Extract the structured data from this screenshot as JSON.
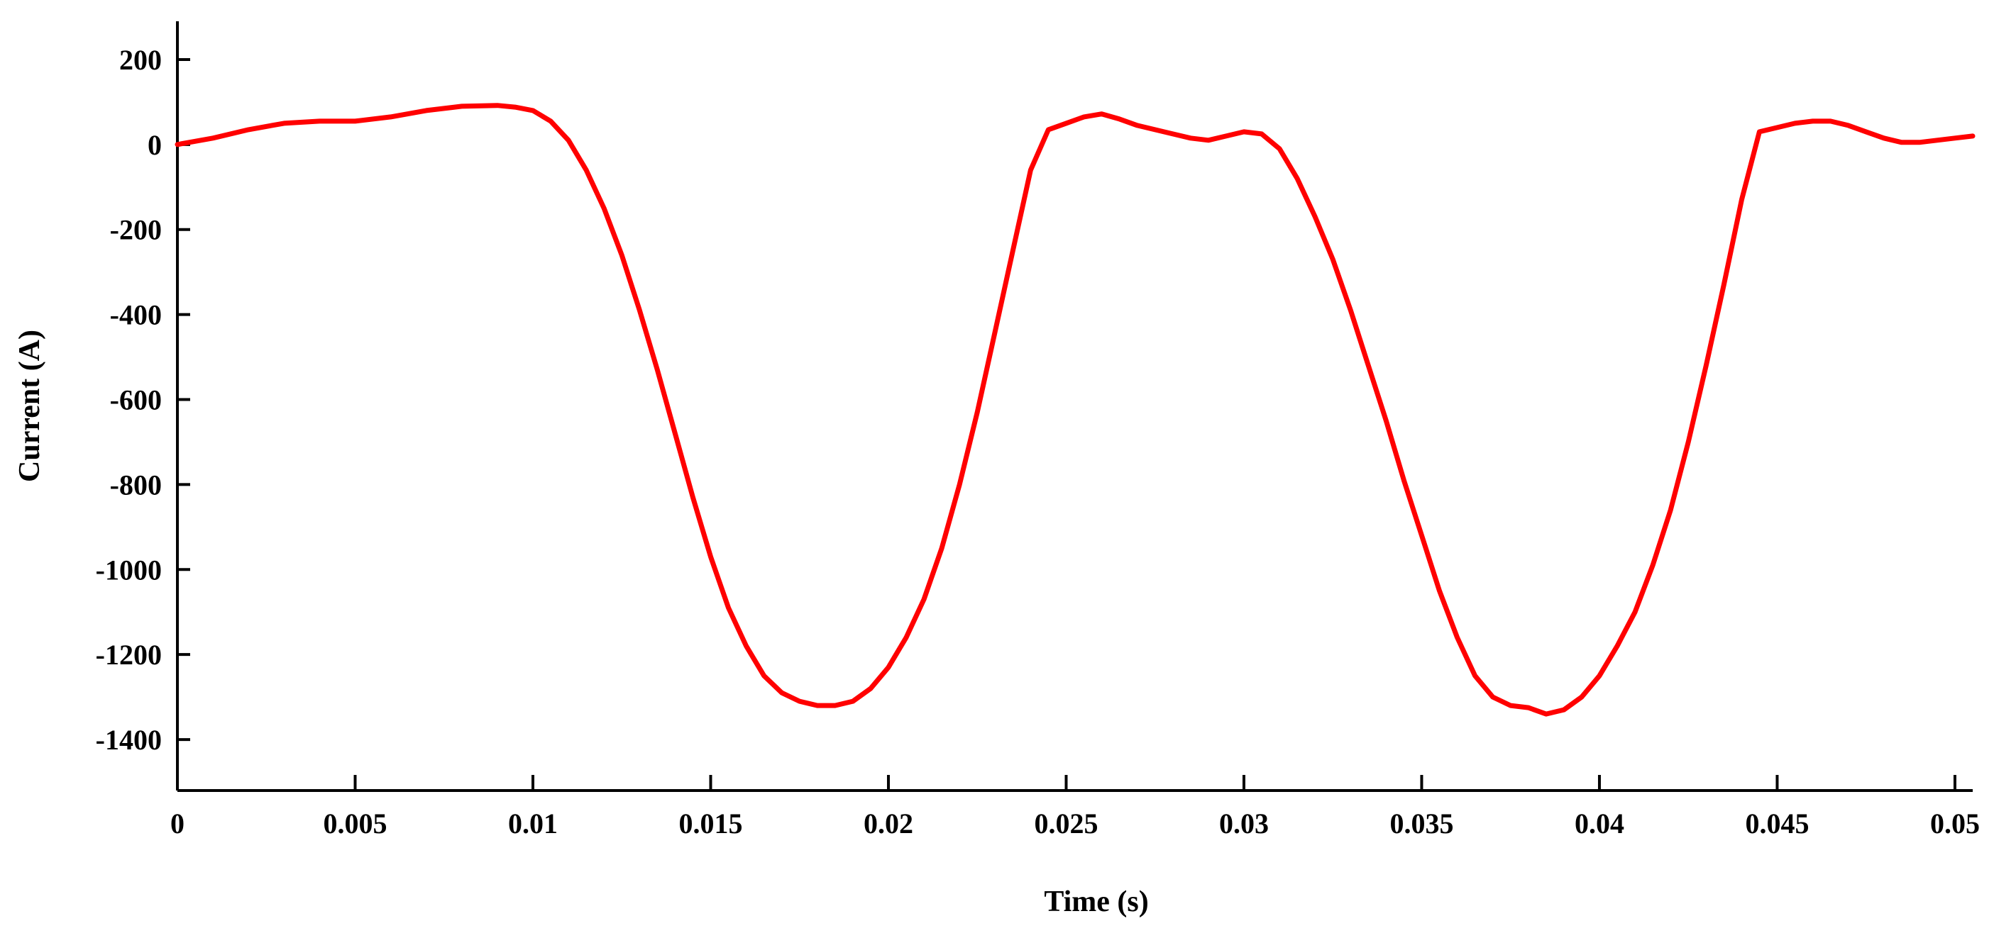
{
  "chart_data": {
    "type": "line",
    "title": "",
    "xlabel": "Time (s)",
    "ylabel": "Current (A)",
    "xlim": [
      0,
      0.0505
    ],
    "ylim": [
      -1520,
      290
    ],
    "x_ticks": [
      0,
      0.005,
      0.01,
      0.015,
      0.02,
      0.025,
      0.03,
      0.035,
      0.04,
      0.045,
      0.05
    ],
    "x_tick_labels": [
      "0",
      "0.005",
      "0.01",
      "0.015",
      "0.02",
      "0.025",
      "0.03",
      "0.035",
      "0.04",
      "0.045",
      "0.05"
    ],
    "y_ticks": [
      200,
      0,
      -200,
      -400,
      -600,
      -800,
      -1000,
      -1200,
      -1400
    ],
    "y_tick_labels": [
      "200",
      "0",
      "-200",
      "-400",
      "-600",
      "-800",
      "-1000",
      "-1200",
      "-1400"
    ],
    "grid": false,
    "legend": "none",
    "colors": {
      "series": "#ff0000",
      "axis": "#000000"
    },
    "series": [
      {
        "x": [
          0,
          0.001,
          0.002,
          0.003,
          0.004,
          0.005,
          0.006,
          0.007,
          0.008,
          0.009,
          0.0095,
          0.01,
          0.0105,
          0.011,
          0.0115,
          0.012,
          0.0125,
          0.013,
          0.0135,
          0.014,
          0.0145,
          0.015,
          0.0155,
          0.016,
          0.0165,
          0.017,
          0.0175,
          0.018,
          0.0185,
          0.019,
          0.0195,
          0.02,
          0.0205,
          0.021,
          0.0215,
          0.022,
          0.0225,
          0.023,
          0.0235,
          0.024,
          0.0245,
          0.025,
          0.0255,
          0.026,
          0.0265,
          0.027,
          0.0275,
          0.028,
          0.0285,
          0.029,
          0.0295,
          0.03,
          0.0305,
          0.031,
          0.0315,
          0.032,
          0.0325,
          0.033,
          0.0335,
          0.034,
          0.0345,
          0.035,
          0.0355,
          0.036,
          0.0365,
          0.037,
          0.0375,
          0.038,
          0.0385,
          0.039,
          0.0395,
          0.04,
          0.0405,
          0.041,
          0.0415,
          0.042,
          0.0425,
          0.043,
          0.0435,
          0.044,
          0.0445,
          0.045,
          0.0455,
          0.046,
          0.0465,
          0.047,
          0.0475,
          0.048,
          0.0485,
          0.049,
          0.0495,
          0.05,
          0.0505
        ],
        "y": [
          0,
          15,
          35,
          50,
          55,
          55,
          65,
          80,
          90,
          92,
          88,
          80,
          55,
          10,
          -60,
          -150,
          -260,
          -390,
          -530,
          -680,
          -830,
          -970,
          -1090,
          -1180,
          -1250,
          -1290,
          -1310,
          -1320,
          -1320,
          -1310,
          -1280,
          -1230,
          -1160,
          -1070,
          -950,
          -800,
          -630,
          -440,
          -250,
          -60,
          35,
          50,
          65,
          72,
          60,
          45,
          35,
          25,
          15,
          10,
          20,
          30,
          25,
          -10,
          -80,
          -170,
          -270,
          -390,
          -520,
          -650,
          -790,
          -920,
          -1050,
          -1160,
          -1250,
          -1300,
          -1320,
          -1325,
          -1340,
          -1330,
          -1300,
          -1250,
          -1180,
          -1100,
          -990,
          -860,
          -700,
          -520,
          -330,
          -130,
          30,
          40,
          50,
          55,
          55,
          45,
          30,
          15,
          5,
          5,
          10,
          15,
          20
        ]
      }
    ]
  }
}
